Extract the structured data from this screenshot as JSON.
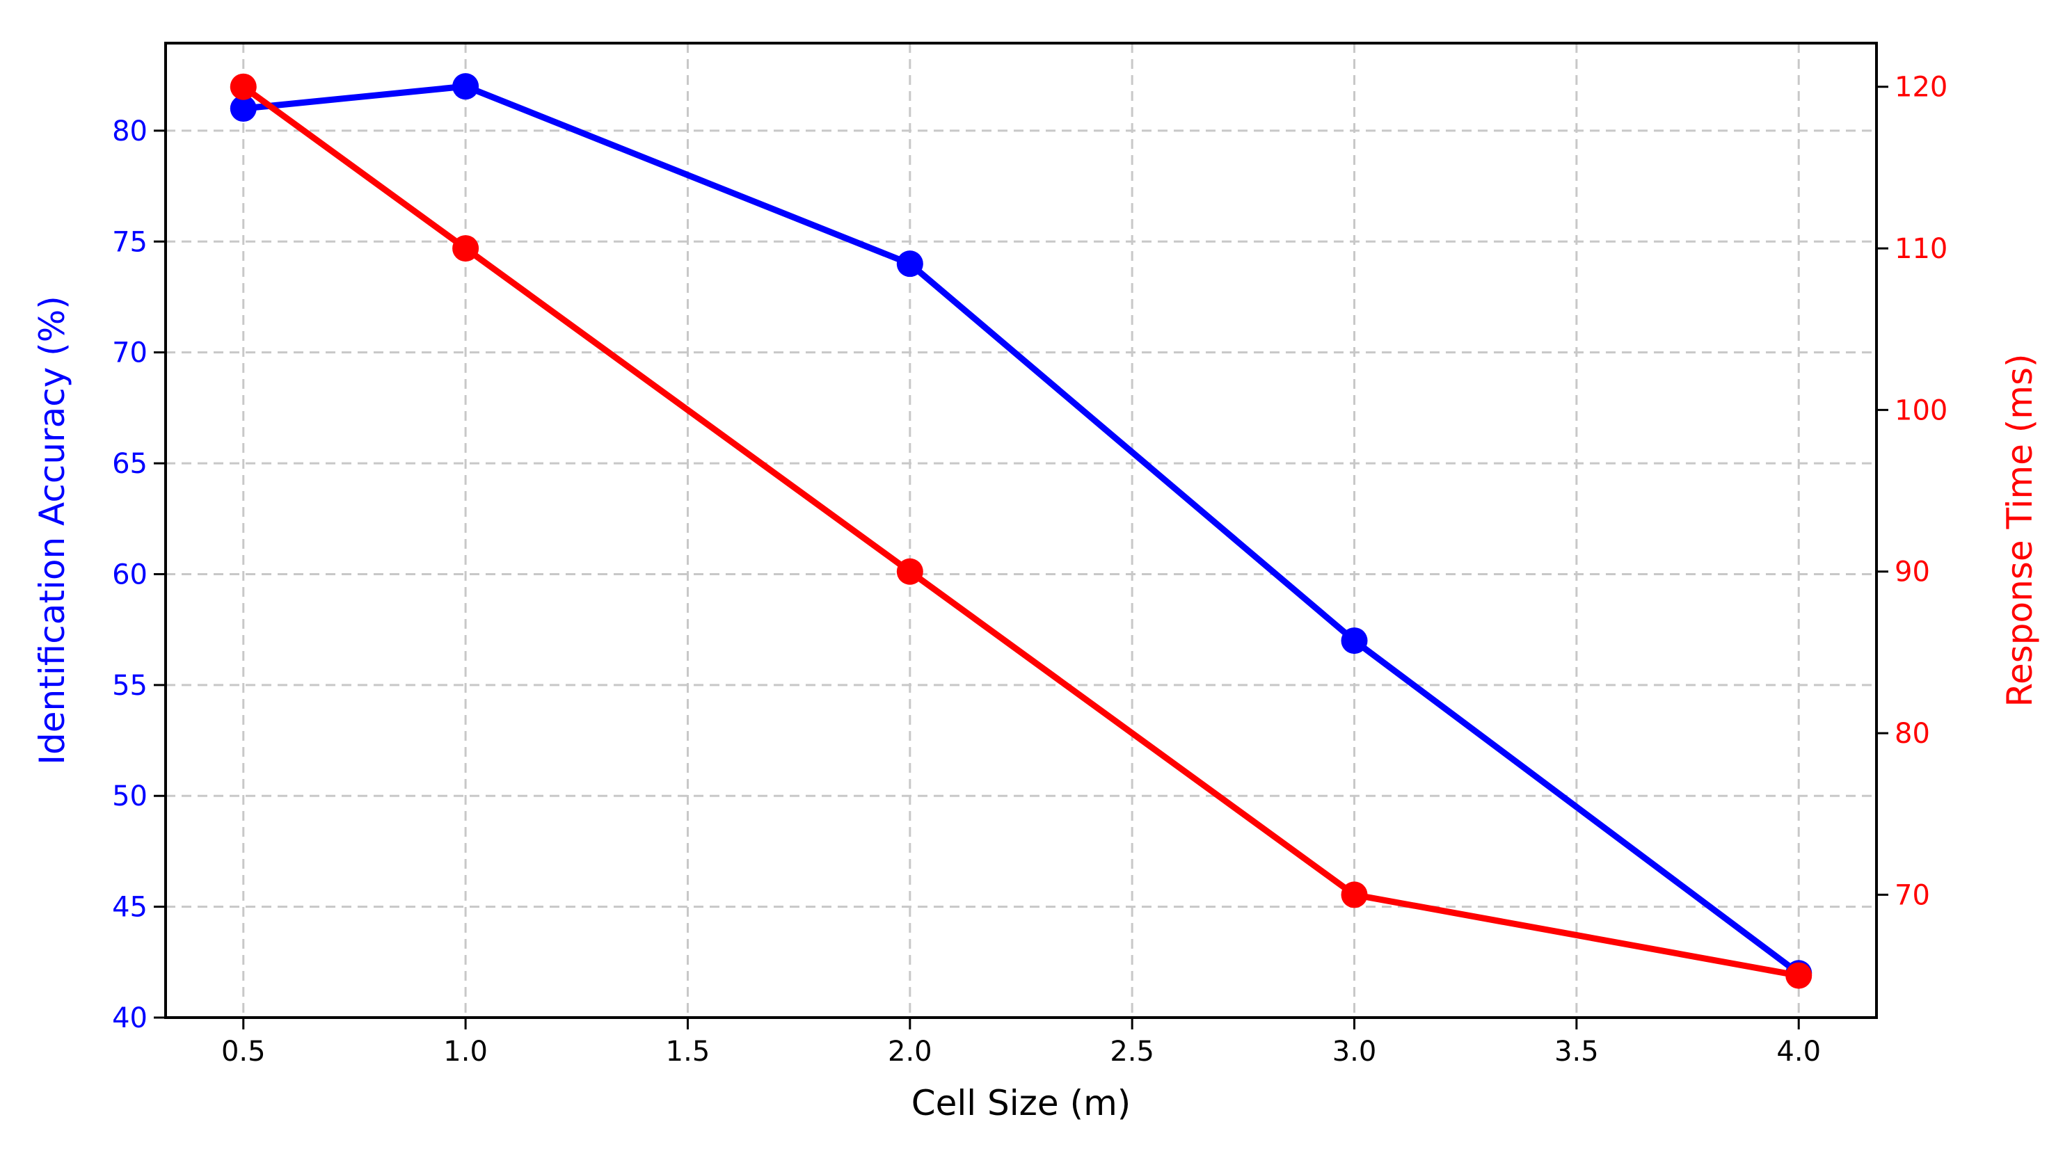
{
  "chart_data": {
    "type": "line",
    "title": "",
    "xlabel": "Cell Size (m)",
    "ylabel": "Identification Accuracy (%)",
    "ylabel_right": "Response Time (ms)",
    "x": [
      0.5,
      1.0,
      2.0,
      3.0,
      4.0
    ],
    "series": [
      {
        "name": "Identification Accuracy (%)",
        "axis": "left",
        "color": "#0000ff",
        "marker": "circle",
        "values": [
          81,
          82,
          74,
          57,
          42
        ]
      },
      {
        "name": "Response Time (ms)",
        "axis": "right",
        "color": "#ff0000",
        "marker": "circle",
        "values": [
          120,
          110,
          90,
          70,
          65
        ]
      }
    ],
    "xlim": [
      0.325,
      4.175
    ],
    "ylim": [
      40,
      83.95
    ],
    "ylim_right": [
      62.4,
      122.7
    ],
    "x_ticks": [
      "0.5",
      "1.0",
      "1.5",
      "2.0",
      "2.5",
      "3.0",
      "3.5",
      "4.0"
    ],
    "x_tick_values": [
      0.5,
      1.0,
      1.5,
      2.0,
      2.5,
      3.0,
      3.5,
      4.0
    ],
    "y_ticks": [
      "40",
      "45",
      "50",
      "55",
      "60",
      "65",
      "70",
      "75",
      "80"
    ],
    "y_tick_values": [
      40,
      45,
      50,
      55,
      60,
      65,
      70,
      75,
      80
    ],
    "y_ticks_right": [
      "70",
      "80",
      "90",
      "100",
      "110",
      "120"
    ],
    "y_tick_values_right": [
      70,
      80,
      90,
      100,
      110,
      120
    ],
    "grid": true,
    "grid_style": "dashed",
    "legend": null,
    "colors": {
      "left_axis": "#0000ff",
      "right_axis": "#ff0000",
      "grid": "#c8c8c8",
      "frame": "#000000"
    }
  }
}
